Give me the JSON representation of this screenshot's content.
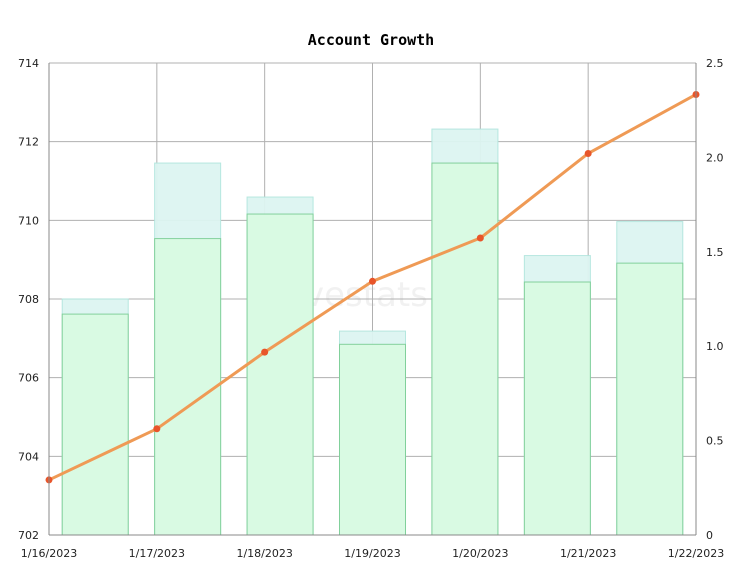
{
  "chart_data": {
    "type": "bar",
    "title": "Account Growth",
    "watermark": "hivestats.io",
    "grid": true,
    "x": [
      "1/16/2023",
      "1/17/2023",
      "1/18/2023",
      "1/19/2023",
      "1/20/2023",
      "1/21/2023",
      "1/22/2023"
    ],
    "y_left": {
      "min": 702,
      "max": 714,
      "ticks": [
        702,
        704,
        706,
        708,
        710,
        712,
        714
      ]
    },
    "y_right": {
      "min": 0,
      "max": 2.5,
      "ticks": [
        "0",
        "0.5",
        "1.0",
        "1.5",
        "2.0",
        "2.5"
      ]
    },
    "series": [
      {
        "type": "bar",
        "axis": "right",
        "color": "#ddf5f2",
        "border": "#b2e6de",
        "values": [
          1.25,
          1.97,
          1.79,
          1.08,
          2.15,
          1.48,
          1.66
        ]
      },
      {
        "type": "bar",
        "axis": "right",
        "color": "#d9fbe3",
        "border": "#7fcf98",
        "values": [
          1.17,
          1.57,
          1.7,
          1.01,
          1.97,
          1.34,
          1.44
        ]
      },
      {
        "type": "line",
        "axis": "left",
        "color": "#ef9a55",
        "point_color": "#e8552a",
        "values": [
          703.4,
          704.7,
          706.65,
          708.45,
          709.55,
          711.7,
          713.2
        ]
      }
    ]
  }
}
